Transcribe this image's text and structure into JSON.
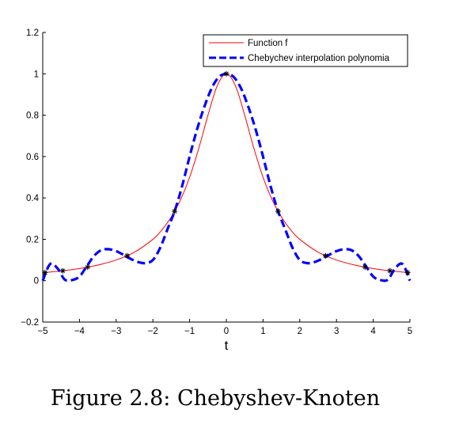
{
  "caption": "Figure 2.8: Chebyshev-Knoten",
  "chart_data": {
    "type": "line",
    "xlabel": "t",
    "ylabel": "",
    "xlim": [
      -5,
      5
    ],
    "ylim": [
      -0.2,
      1.2
    ],
    "xticks": [
      -5,
      -4,
      -3,
      -2,
      -1,
      0,
      1,
      2,
      3,
      4,
      5
    ],
    "xtick_labels": [
      "−5",
      "−4",
      "−3",
      "−2",
      "−1",
      "0",
      "1",
      "2",
      "3",
      "4",
      "5"
    ],
    "yticks": [
      -0.2,
      0,
      0.2,
      0.4,
      0.6,
      0.8,
      1,
      1.2
    ],
    "ytick_labels": [
      "−0.2",
      "0",
      "0.2",
      "0.4",
      "0.6",
      "0.8",
      "1",
      "1.2"
    ],
    "legend": "top-right",
    "series": [
      {
        "name": "Function f",
        "color": "#ff0000",
        "style": "solid",
        "x": [
          -5,
          -4.5,
          -4,
          -3.5,
          -3,
          -2.5,
          -2,
          -1.75,
          -1.5,
          -1.25,
          -1,
          -0.75,
          -0.5,
          -0.25,
          0,
          0.25,
          0.5,
          0.75,
          1,
          1.25,
          1.5,
          1.75,
          2,
          2.5,
          3,
          3.5,
          4,
          4.5,
          5
        ],
        "y": [
          0.0385,
          0.0471,
          0.0588,
          0.0755,
          0.1,
          0.1379,
          0.2,
          0.2462,
          0.3077,
          0.3902,
          0.5,
          0.64,
          0.8,
          0.9412,
          1,
          0.9412,
          0.8,
          0.64,
          0.5,
          0.3902,
          0.3077,
          0.2462,
          0.2,
          0.1379,
          0.1,
          0.0755,
          0.0588,
          0.0471,
          0.0385
        ]
      },
      {
        "name": "Chebychev interpolation polynomia",
        "color": "#0000ff",
        "style": "dashed",
        "x": [
          -5,
          -4.8,
          -4.6,
          -4.4,
          -4.2,
          -4.0,
          -3.8,
          -3.6,
          -3.4,
          -3.2,
          -3.0,
          -2.8,
          -2.6,
          -2.4,
          -2.2,
          -2.0,
          -1.8,
          -1.6,
          -1.4,
          -1.2,
          -1.0,
          -0.8,
          -0.6,
          -0.4,
          -0.2,
          0,
          0.2,
          0.4,
          0.6,
          0.8,
          1.0,
          1.2,
          1.4,
          1.6,
          1.8,
          2.0,
          2.2,
          2.4,
          2.6,
          2.8,
          3.0,
          3.2,
          3.4,
          3.6,
          3.8,
          4.0,
          4.2,
          4.4,
          4.6,
          4.8,
          5
        ],
        "y": [
          0.0,
          0.08,
          0.06,
          0.005,
          0.003,
          0.02,
          0.07,
          0.12,
          0.148,
          0.152,
          0.143,
          0.125,
          0.105,
          0.09,
          0.085,
          0.1,
          0.16,
          0.25,
          0.34,
          0.46,
          0.6,
          0.73,
          0.84,
          0.93,
          0.985,
          1.0,
          0.985,
          0.93,
          0.84,
          0.73,
          0.6,
          0.46,
          0.34,
          0.25,
          0.16,
          0.1,
          0.085,
          0.09,
          0.105,
          0.125,
          0.143,
          0.152,
          0.148,
          0.12,
          0.07,
          0.02,
          0.003,
          0.005,
          0.06,
          0.08,
          0.0
        ]
      },
      {
        "name": "",
        "color": "#000000",
        "style": "markers",
        "marker": "*",
        "x": [
          -4.9384,
          -4.455,
          -3.7787,
          -2.7032,
          -1.4087,
          0,
          1.4087,
          2.7032,
          3.7787,
          4.455,
          4.9384
        ],
        "y": [
          0.0394,
          0.048,
          0.0654,
          0.1204,
          0.3351,
          1.0,
          0.3351,
          0.1204,
          0.0654,
          0.048,
          0.0394
        ]
      }
    ]
  }
}
